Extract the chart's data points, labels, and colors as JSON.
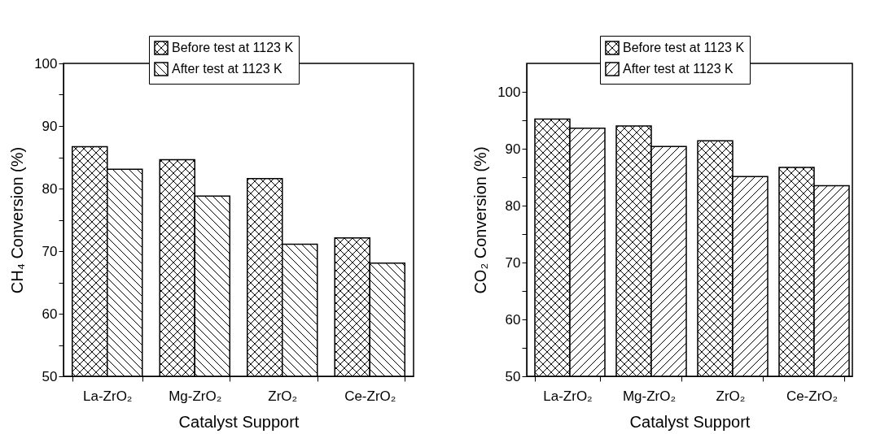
{
  "chart_data": [
    {
      "type": "bar",
      "xlabel": "Catalyst Support",
      "ylabel": "CH₄ Conversion (%)",
      "categories": [
        "La-ZrO₂",
        "Mg-ZrO₂",
        "ZrO₂",
        "Ce-ZrO₂"
      ],
      "series": [
        {
          "name": "Before test at 1123 K",
          "color": "#000000",
          "values": [
            86.7,
            84.6,
            81.6,
            72.1
          ]
        },
        {
          "name": "After test at 1123 K",
          "color": "#000000",
          "values": [
            83.1,
            78.8,
            71.1,
            68.1
          ]
        }
      ],
      "ylim": [
        50,
        100
      ],
      "yticks": [
        50,
        {
          "value": 55,
          "label": null
        },
        60,
        {
          "value": 65,
          "label": null
        },
        70,
        {
          "value": 75,
          "label": null
        },
        80,
        {
          "value": 85,
          "label": null
        },
        90,
        {
          "value": 95,
          "label": null
        },
        100
      ],
      "legend": "top",
      "grid": false
    },
    {
      "type": "bar",
      "xlabel": "Catalyst Support",
      "ylabel": "CO₂ Conversion (%)",
      "categories": [
        "La-ZrO₂",
        "Mg-ZrO₂",
        "ZrO₂",
        "Ce-ZrO₂"
      ],
      "series": [
        {
          "name": "Before test at 1123 K",
          "color": "#000000",
          "values": [
            95.2,
            94.0,
            91.4,
            86.7
          ]
        },
        {
          "name": "After test at 1123 K",
          "color": "#000000",
          "values": [
            93.6,
            90.4,
            85.1,
            83.5
          ]
        }
      ],
      "ylim": [
        50,
        105
      ],
      "yticks": [
        50,
        {
          "value": 55,
          "label": null
        },
        60,
        {
          "value": 65,
          "label": null
        },
        70,
        {
          "value": 75,
          "label": null
        },
        80,
        {
          "value": 85,
          "label": null
        },
        90,
        {
          "value": 95,
          "label": null
        },
        100
      ],
      "legend": "top",
      "grid": false
    }
  ]
}
